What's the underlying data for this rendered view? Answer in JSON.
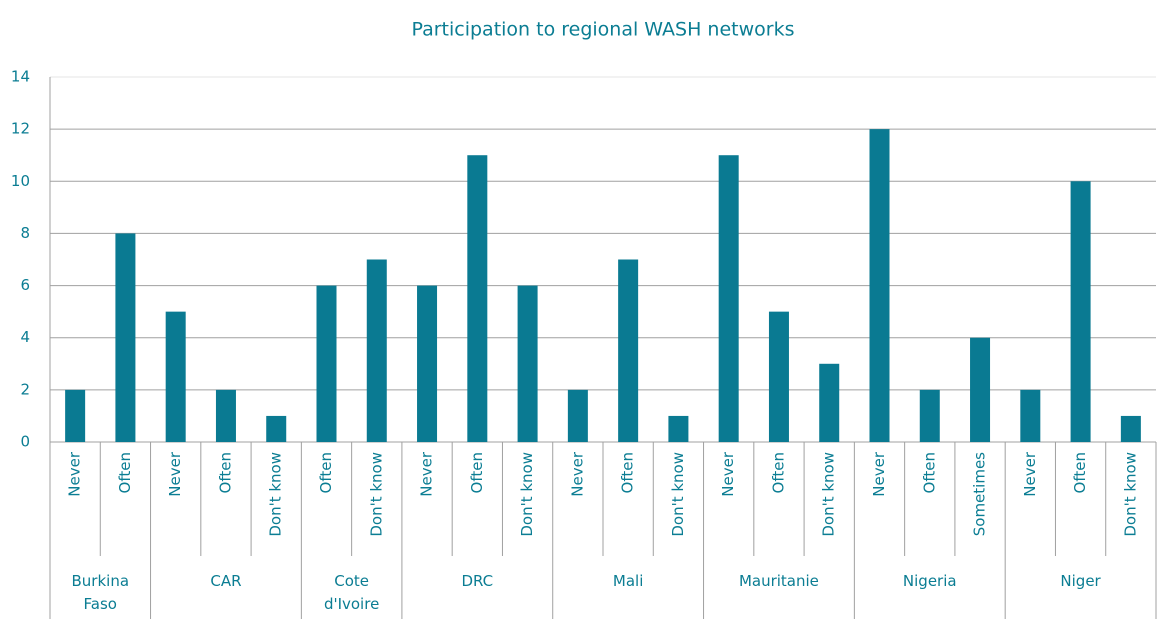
{
  "chart_data": {
    "type": "bar",
    "title": "Participation to regional WASH networks",
    "color": "#0a7a92",
    "groups": [
      {
        "name": "Burkina Faso",
        "categories": [
          "Never",
          "Often"
        ],
        "values": [
          2,
          8
        ]
      },
      {
        "name": "CAR",
        "categories": [
          "Never",
          "Often",
          "Don't know"
        ],
        "values": [
          5,
          2,
          1
        ]
      },
      {
        "name": "Cote d'Ivoire",
        "categories": [
          "Often",
          "Don't know"
        ],
        "values": [
          6,
          7
        ]
      },
      {
        "name": "DRC",
        "categories": [
          "Never",
          "Often",
          "Don't know"
        ],
        "values": [
          6,
          11,
          6
        ]
      },
      {
        "name": "Mali",
        "categories": [
          "Never",
          "Often",
          "Don't know"
        ],
        "values": [
          2,
          7,
          1
        ]
      },
      {
        "name": "Mauritanie",
        "categories": [
          "Never",
          "Often",
          "Don't know"
        ],
        "values": [
          11,
          5,
          3
        ]
      },
      {
        "name": "Nigeria",
        "categories": [
          "Never",
          "Often",
          "Sometimes"
        ],
        "values": [
          12,
          2,
          4
        ]
      },
      {
        "name": "Niger",
        "categories": [
          "Never",
          "Often",
          "Don't know"
        ],
        "values": [
          2,
          10,
          1
        ]
      }
    ],
    "ylim": [
      0,
      14
    ],
    "yticks": [
      0,
      2,
      4,
      6,
      8,
      10,
      12,
      14
    ],
    "grid": true
  }
}
